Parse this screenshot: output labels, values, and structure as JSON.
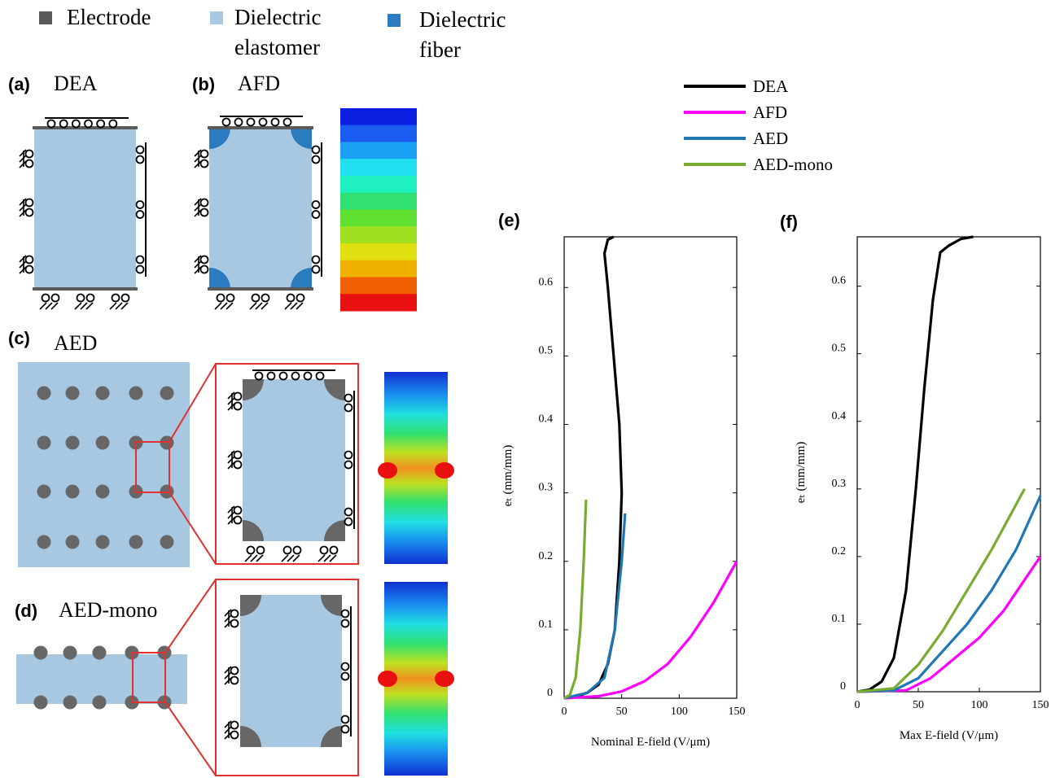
{
  "legend": [
    {
      "lines": [
        "Electrode"
      ],
      "color": "#5a5a5a"
    },
    {
      "lines": [
        "Dielectric",
        "elastomer"
      ],
      "color": "#a7c8e0"
    },
    {
      "lines": [
        "Dielectric",
        "fiber"
      ],
      "color": "#2a7bbf"
    }
  ],
  "panels": [
    {
      "label": "(a)",
      "name": "DEA"
    },
    {
      "label": "(b)",
      "name": "AFD"
    },
    {
      "label": "(c)",
      "name": "AED"
    },
    {
      "label": "(d)",
      "name": "AED-mono"
    }
  ],
  "chart_data": [
    {
      "type": "line",
      "panel_label": "(e)",
      "xlabel": "Nominal E-field (V/μm)",
      "ylabel": "eₜ (mm/mm)",
      "xlim": [
        0,
        150
      ],
      "ylim": [
        0,
        0.674
      ],
      "xticks": [
        0,
        50,
        100,
        150
      ],
      "yticks": [
        0,
        0.1,
        0.2,
        0.3,
        0.4,
        0.5,
        0.6
      ],
      "series": [
        {
          "name": "DEA",
          "color": "#000000",
          "x": [
            0,
            10,
            20,
            30,
            38,
            44,
            48,
            50,
            48,
            43,
            38,
            35,
            38,
            43
          ],
          "values": [
            0,
            0.002,
            0.008,
            0.02,
            0.05,
            0.1,
            0.2,
            0.3,
            0.4,
            0.5,
            0.6,
            0.65,
            0.67,
            0.674
          ]
        },
        {
          "name": "AFD",
          "color": "#ff00ff",
          "x": [
            0,
            30,
            50,
            70,
            90,
            110,
            130,
            150
          ],
          "values": [
            0,
            0.003,
            0.01,
            0.025,
            0.05,
            0.09,
            0.14,
            0.2
          ]
        },
        {
          "name": "AED",
          "color": "#1f77b4",
          "x": [
            0,
            20,
            35,
            44,
            50,
            53
          ],
          "values": [
            0,
            0.008,
            0.03,
            0.1,
            0.2,
            0.27
          ]
        },
        {
          "name": "AED-mono",
          "color": "#77ac30",
          "x": [
            0,
            5,
            10,
            14,
            17,
            19
          ],
          "values": [
            0,
            0.005,
            0.03,
            0.1,
            0.2,
            0.29
          ]
        }
      ]
    },
    {
      "type": "line",
      "panel_label": "(f)",
      "xlabel": "Max E-field (V/μm)",
      "ylabel": "eₜ (mm/mm)",
      "xlim": [
        0,
        150
      ],
      "ylim": [
        0,
        0.673
      ],
      "xticks": [
        0,
        50,
        100,
        150
      ],
      "yticks": [
        0,
        0.1,
        0.2,
        0.3,
        0.4,
        0.5,
        0.6
      ],
      "series": [
        {
          "name": "DEA",
          "color": "#000000",
          "x": [
            0,
            10,
            20,
            30,
            40,
            48,
            55,
            62,
            68,
            75,
            85,
            95
          ],
          "values": [
            0,
            0.003,
            0.015,
            0.05,
            0.15,
            0.3,
            0.45,
            0.58,
            0.65,
            0.66,
            0.67,
            0.673
          ]
        },
        {
          "name": "AFD",
          "color": "#ff00ff",
          "x": [
            0,
            40,
            60,
            80,
            100,
            120,
            150
          ],
          "values": [
            0,
            0.002,
            0.02,
            0.05,
            0.08,
            0.12,
            0.2
          ]
        },
        {
          "name": "AED",
          "color": "#1f77b4",
          "x": [
            0,
            30,
            50,
            70,
            90,
            110,
            130,
            150
          ],
          "values": [
            0,
            0.002,
            0.02,
            0.06,
            0.1,
            0.15,
            0.21,
            0.29
          ]
        },
        {
          "name": "AED-mono",
          "color": "#77ac30",
          "x": [
            0,
            30,
            50,
            70,
            90,
            110,
            137
          ],
          "values": [
            0,
            0.005,
            0.04,
            0.09,
            0.15,
            0.21,
            0.3
          ]
        }
      ]
    }
  ]
}
